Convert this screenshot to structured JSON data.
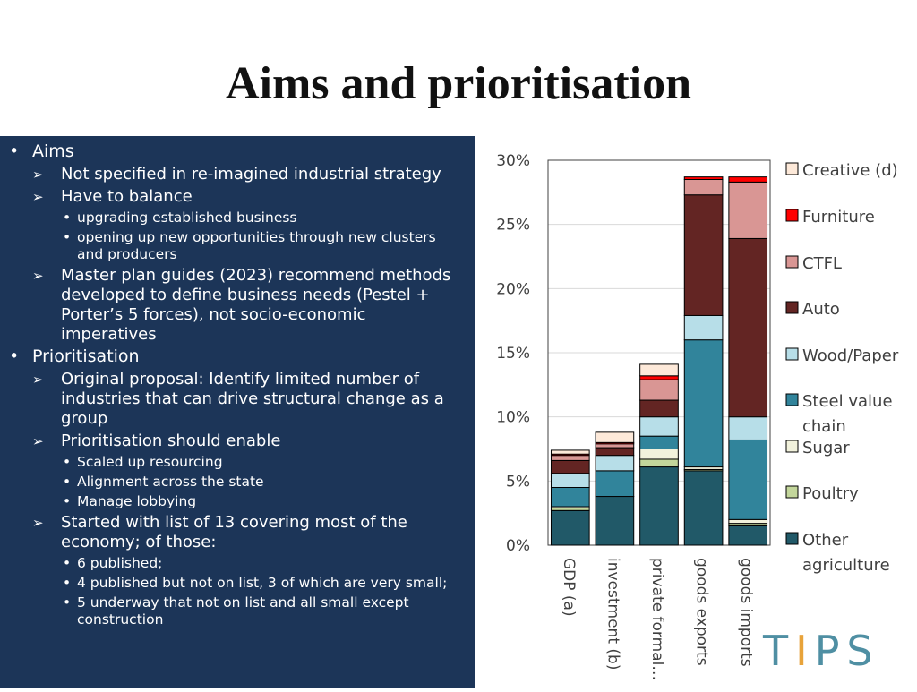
{
  "title": "Aims and prioritisation",
  "bullets": [
    {
      "text": "Aims",
      "children": [
        {
          "text": "Not specified in re-imagined industrial strategy",
          "children": []
        },
        {
          "text": "Have to balance",
          "children": [
            "upgrading established business",
            "opening up new opportunities through new clusters and producers"
          ]
        },
        {
          "text": "Master plan guides (2023) recommend methods developed to define business needs (Pestel + Porter’s 5 forces), not socio-economic imperatives",
          "children": []
        }
      ]
    },
    {
      "text": "Prioritisation",
      "children": [
        {
          "text": "Original proposal: Identify limited number of industries that can drive structural change as a group",
          "children": []
        },
        {
          "text": "Prioritisation should enable",
          "children": [
            "Scaled up resourcing",
            "Alignment across the state",
            "Manage lobbying"
          ]
        },
        {
          "text": "Started with list of 13 covering most of the economy; of those:",
          "children": [
            "6 published;",
            "4 published but not on list, 3 of which are very small;",
            "5 underway that not on list and all small except construction"
          ]
        }
      ]
    }
  ],
  "chart_data": {
    "type": "bar",
    "stacked": true,
    "categories": [
      "GDP (a)",
      "investment (b)",
      "private formal…",
      "goods exports",
      "goods imports"
    ],
    "y_ticks": [
      "0%",
      "5%",
      "10%",
      "15%",
      "20%",
      "25%",
      "30%"
    ],
    "ylim": [
      0,
      30
    ],
    "series": [
      {
        "name": "Other agriculture",
        "color": "#215968",
        "values": [
          2.7,
          3.8,
          6.1,
          5.8,
          1.5
        ]
      },
      {
        "name": "Poultry",
        "color": "#c3d69b",
        "values": [
          0.2,
          0.0,
          0.6,
          0.1,
          0.2
        ]
      },
      {
        "name": "Sugar",
        "color": "#f2f2dc",
        "values": [
          0.1,
          0.0,
          0.8,
          0.2,
          0.3
        ]
      },
      {
        "name": "Steel value chain",
        "color": "#31849b",
        "values": [
          1.5,
          2.0,
          1.0,
          9.9,
          6.2
        ]
      },
      {
        "name": "Wood/Paper",
        "color": "#b7dee8",
        "values": [
          1.1,
          1.2,
          1.5,
          1.9,
          1.8
        ]
      },
      {
        "name": "Auto",
        "color": "#632523",
        "values": [
          1.0,
          0.6,
          1.3,
          9.4,
          13.9
        ]
      },
      {
        "name": "CTFL",
        "color": "#d99694",
        "values": [
          0.4,
          0.3,
          1.6,
          1.2,
          4.4
        ]
      },
      {
        "name": "Furniture",
        "color": "#ff0000",
        "values": [
          0.1,
          0.1,
          0.3,
          0.2,
          0.4
        ]
      },
      {
        "name": "Creative (d)",
        "color": "#fde9d9",
        "values": [
          0.3,
          0.8,
          0.9,
          0.0,
          0.0
        ]
      }
    ],
    "legend_order": [
      "Creative (d)",
      "Furniture",
      "CTFL",
      "Auto",
      "Wood/Paper",
      "Steel value chain",
      "Sugar",
      "Poultry",
      "Other agriculture"
    ]
  },
  "logo": {
    "text_left": "T",
    "text_mid": "I",
    "text_right": "PS"
  }
}
